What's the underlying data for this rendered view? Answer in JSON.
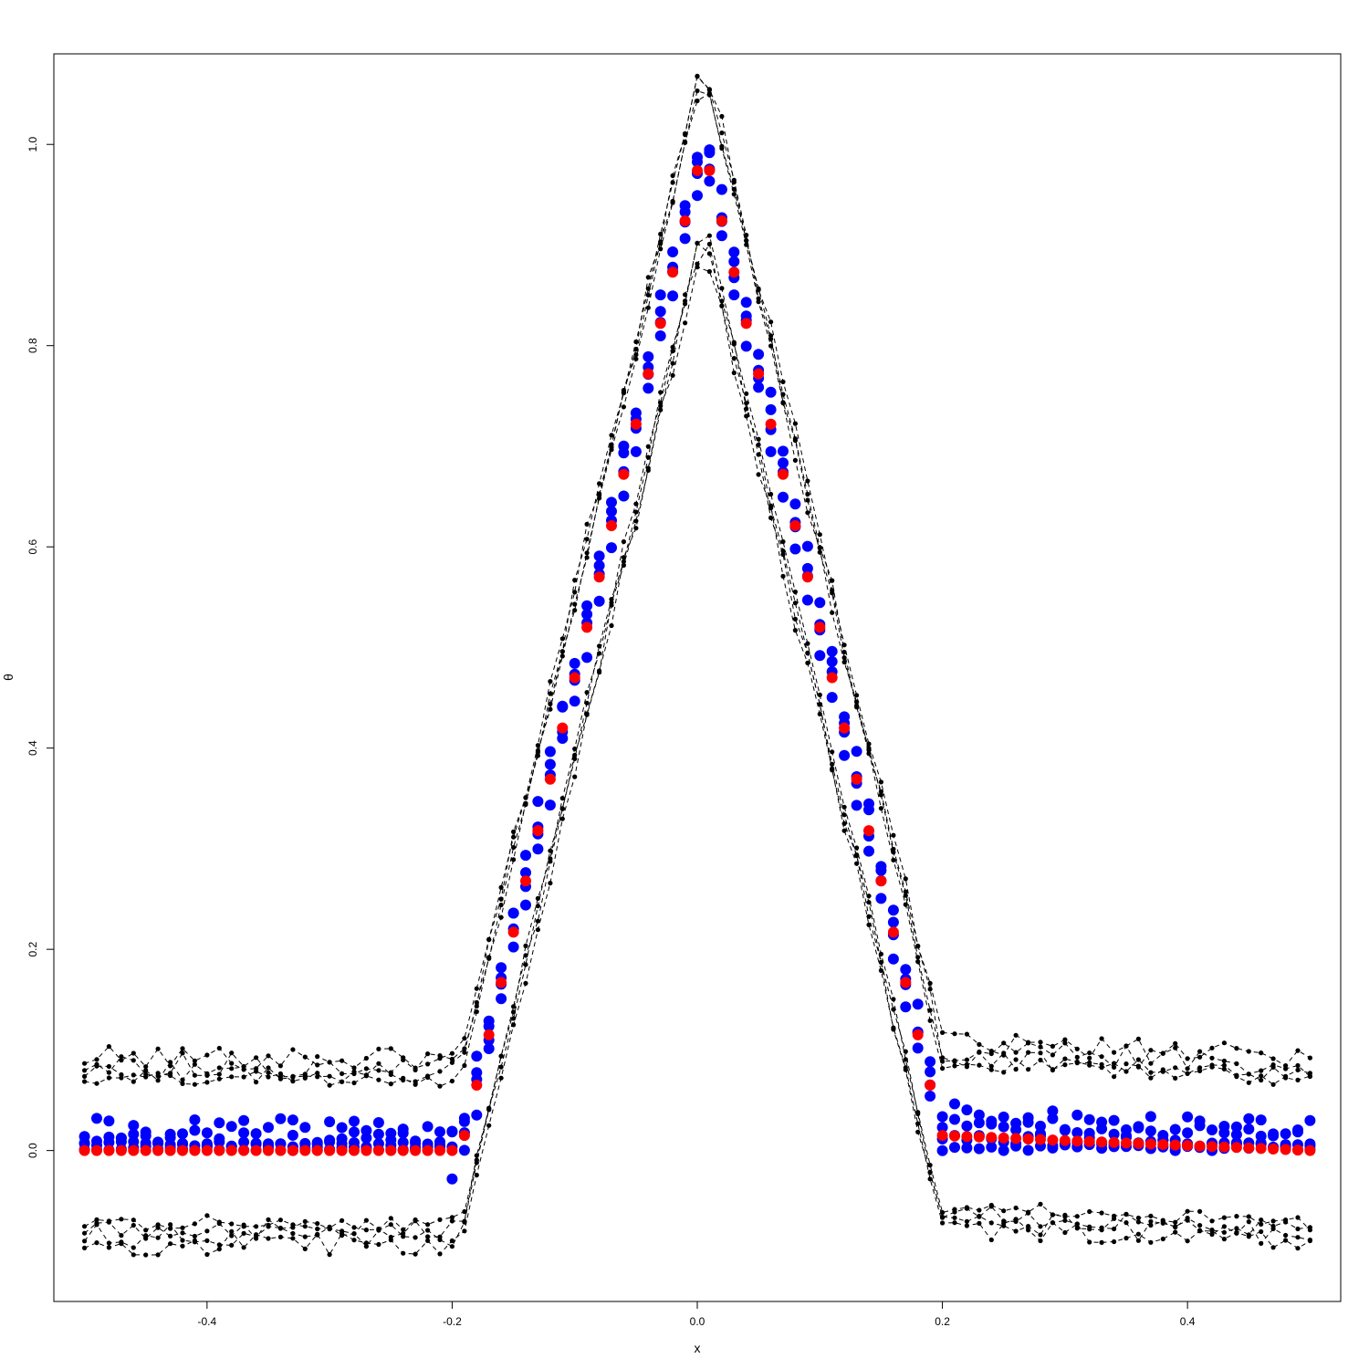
{
  "chart_data": {
    "type": "scatter",
    "title": "",
    "xlabel": "x",
    "ylabel": "θ",
    "xlim": [
      -0.525,
      0.525
    ],
    "ylim": [
      -0.15,
      1.09
    ],
    "x_ticks": [
      -0.4,
      -0.2,
      0.0,
      0.2,
      0.4
    ],
    "x_tick_labels": [
      "-0.4",
      "-0.2",
      "0.0",
      "0.2",
      "0.4"
    ],
    "y_ticks": [
      0.0,
      0.2,
      0.4,
      0.6,
      0.8,
      1.0
    ],
    "y_tick_labels": [
      "0.0",
      "0.2",
      "0.4",
      "0.6",
      "0.8",
      "1.0"
    ],
    "grid": false,
    "legend": "none",
    "colors": {
      "true": "#ff0000",
      "estimate": "#0000ff",
      "band": "#000000"
    },
    "true_curve": {
      "x": [
        -0.5,
        -0.2,
        -0.19,
        -0.18,
        -0.17,
        -0.16,
        -0.15,
        -0.14,
        -0.13,
        -0.12,
        -0.11,
        -0.1,
        -0.09,
        -0.08,
        -0.07,
        -0.06,
        -0.05,
        -0.04,
        -0.03,
        -0.02,
        -0.01,
        0.0,
        0.01,
        0.02,
        0.03,
        0.04,
        0.05,
        0.06,
        0.07,
        0.08,
        0.09,
        0.1,
        0.11,
        0.12,
        0.13,
        0.14,
        0.15,
        0.16,
        0.17,
        0.18,
        0.19,
        0.2,
        0.5
      ],
      "y": [
        0,
        0,
        0.015,
        0.065,
        0.115,
        0.167,
        0.217,
        0.268,
        0.318,
        0.369,
        0.42,
        0.47,
        0.52,
        0.57,
        0.621,
        0.672,
        0.722,
        0.772,
        0.822,
        0.873,
        0.924,
        0.974,
        0.974,
        0.924,
        0.873,
        0.822,
        0.772,
        0.722,
        0.672,
        0.621,
        0.57,
        0.52,
        0.47,
        0.42,
        0.369,
        0.318,
        0.268,
        0.217,
        0.167,
        0.115,
        0.065,
        0.015,
        0
      ]
    },
    "estimate_series": [
      {
        "offset": 0.0,
        "noise": 0.006,
        "seed": 11
      },
      {
        "offset": 0.012,
        "noise": 0.01,
        "seed": 23
      },
      {
        "offset": -0.02,
        "noise": 0.01,
        "seed": 37
      },
      {
        "offset": 0.02,
        "noise": 0.012,
        "seed": 41
      }
    ],
    "band_series": [
      {
        "side": "upper",
        "offset": 0.092,
        "noise": 0.012,
        "seed": 101
      },
      {
        "side": "upper",
        "offset": 0.085,
        "noise": 0.012,
        "seed": 113
      },
      {
        "side": "upper",
        "offset": 0.078,
        "noise": 0.01,
        "seed": 127
      },
      {
        "side": "upper",
        "offset": 0.072,
        "noise": 0.008,
        "seed": 131
      },
      {
        "side": "lower",
        "offset": -0.072,
        "noise": 0.008,
        "seed": 137
      },
      {
        "side": "lower",
        "offset": -0.078,
        "noise": 0.01,
        "seed": 149
      },
      {
        "side": "lower",
        "offset": -0.085,
        "noise": 0.012,
        "seed": 151
      },
      {
        "side": "lower",
        "offset": -0.092,
        "noise": 0.012,
        "seed": 157
      }
    ]
  }
}
